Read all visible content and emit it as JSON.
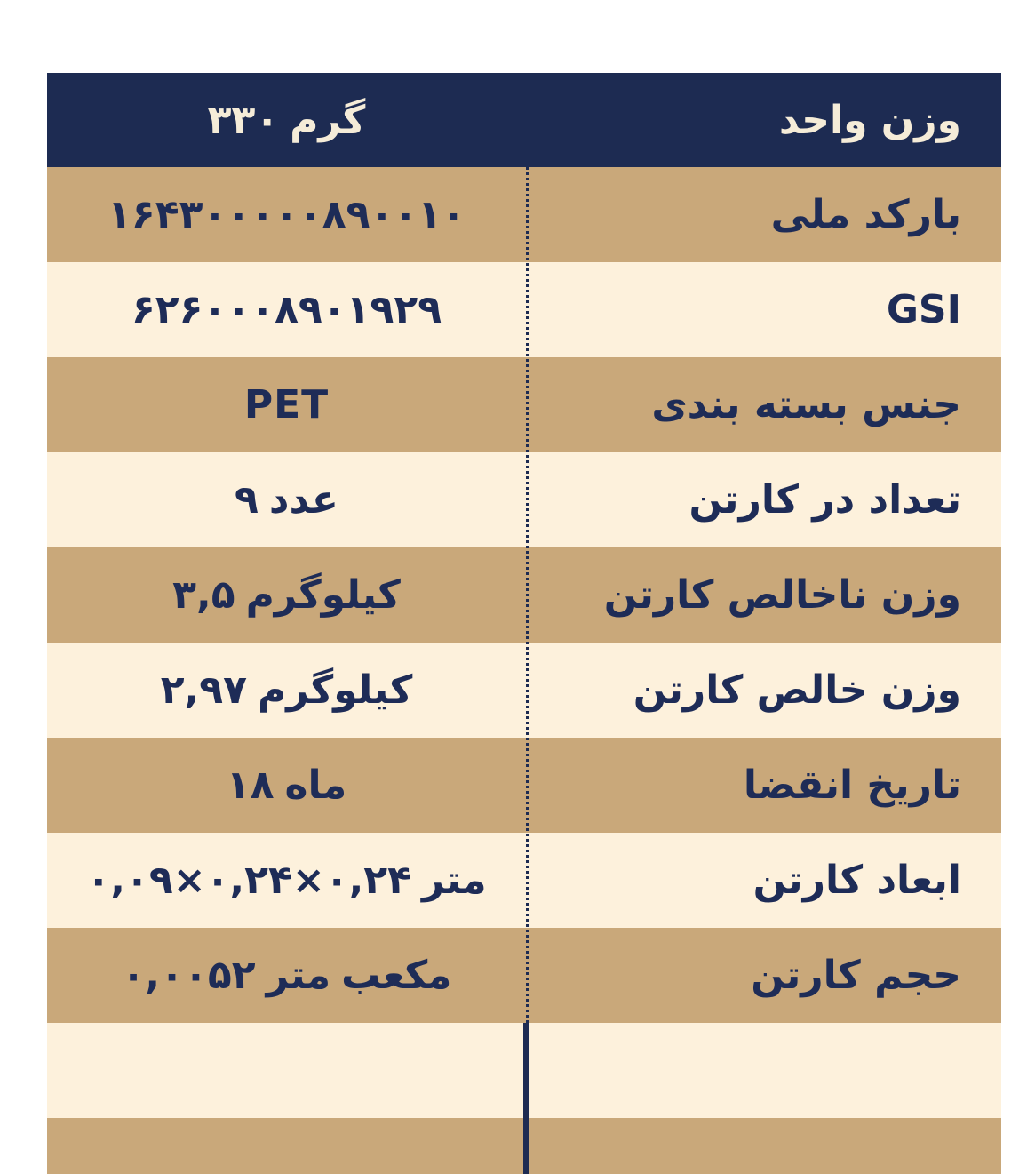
{
  "colors": {
    "navy": "#1d2b52",
    "tan": "#c9a87a",
    "cream": "#fdf1dc",
    "text_navy": "#1e2c57",
    "header_text": "#f5ecd8",
    "page_background": "#ffffff"
  },
  "table": {
    "header": {
      "label": "وزن واحد",
      "value_segments": [
        "۳۳۰",
        "گرم"
      ]
    },
    "rows": [
      {
        "label": "بارکد ملی",
        "value_segments": [
          "۱۶۴۳۰۰۰۰۰۸۹۰۰۱۰"
        ],
        "shade": "tan"
      },
      {
        "label": "GSI",
        "value_segments": [
          "۶۲۶۰۰۰۸۹۰۱۹۲۹"
        ],
        "shade": "cream"
      },
      {
        "label": "جنس بسته بندی",
        "value_segments": [
          "PET"
        ],
        "shade": "tan"
      },
      {
        "label": "تعداد در کارتن",
        "value_segments": [
          "۹",
          "عدد"
        ],
        "shade": "cream"
      },
      {
        "label": "وزن ناخالص کارتن",
        "value_segments": [
          "۳,۵",
          "کیلوگرم"
        ],
        "shade": "tan"
      },
      {
        "label": "وزن خالص کارتن",
        "value_segments": [
          "۲,۹۷",
          "کیلوگرم"
        ],
        "shade": "cream"
      },
      {
        "label": "تاریخ انقضا",
        "value_segments": [
          "۱۸",
          "ماه"
        ],
        "shade": "tan"
      },
      {
        "label": "ابعاد کارتن",
        "value_segments": [
          "۰,۰۹×۰,۲۴×۰,۲۴",
          "متر"
        ],
        "shade": "cream"
      },
      {
        "label": "حجم کارتن",
        "value_segments": [
          "۰,۰۰۵۲",
          "متر",
          "مکعب"
        ],
        "shade": "tan"
      },
      {
        "label": "",
        "value_segments": [],
        "shade": "cream"
      },
      {
        "label": "",
        "value_segments": [],
        "shade": "tan"
      }
    ]
  }
}
